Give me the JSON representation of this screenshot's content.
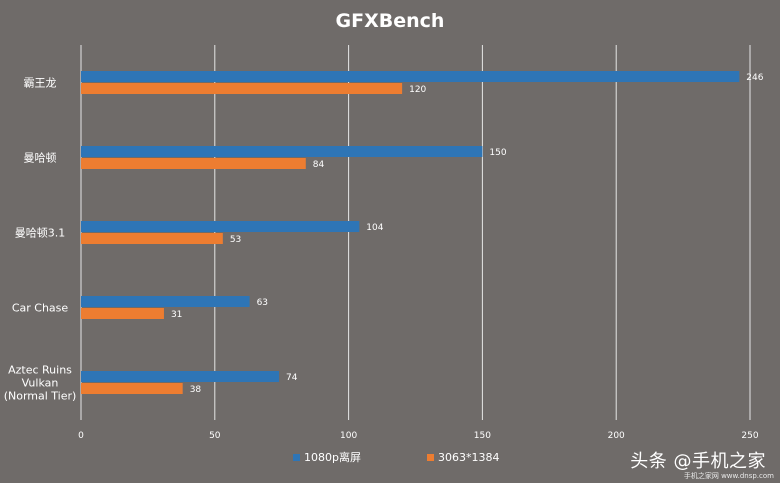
{
  "chart_data": {
    "type": "bar",
    "orientation": "horizontal",
    "title": "GFXBench",
    "categories": [
      "霸王龙",
      "曼哈顿",
      "曼哈顿3.1",
      "Car Chase",
      "Aztec Ruins Vulkan (Normal Tier)"
    ],
    "category_lines": [
      [
        "霸王龙"
      ],
      [
        "曼哈顿"
      ],
      [
        "曼哈顿3.1"
      ],
      [
        "Car Chase"
      ],
      [
        "Aztec Ruins",
        "Vulkan",
        "(Normal Tier)"
      ]
    ],
    "series": [
      {
        "name": "1080p离屏",
        "color": "#2e75b6",
        "values": [
          246,
          150,
          104,
          63,
          74
        ]
      },
      {
        "name": "3063*1384",
        "color": "#ed7d31",
        "values": [
          120,
          84,
          53,
          31,
          38
        ]
      }
    ],
    "xlim": [
      0,
      250
    ],
    "xticks": [
      0,
      50,
      100,
      150,
      200,
      250
    ],
    "grid": true,
    "legend_position": "bottom"
  },
  "watermark": {
    "text": "头条 @手机之家",
    "sub": "手机之家网 www.dnsp.com"
  }
}
